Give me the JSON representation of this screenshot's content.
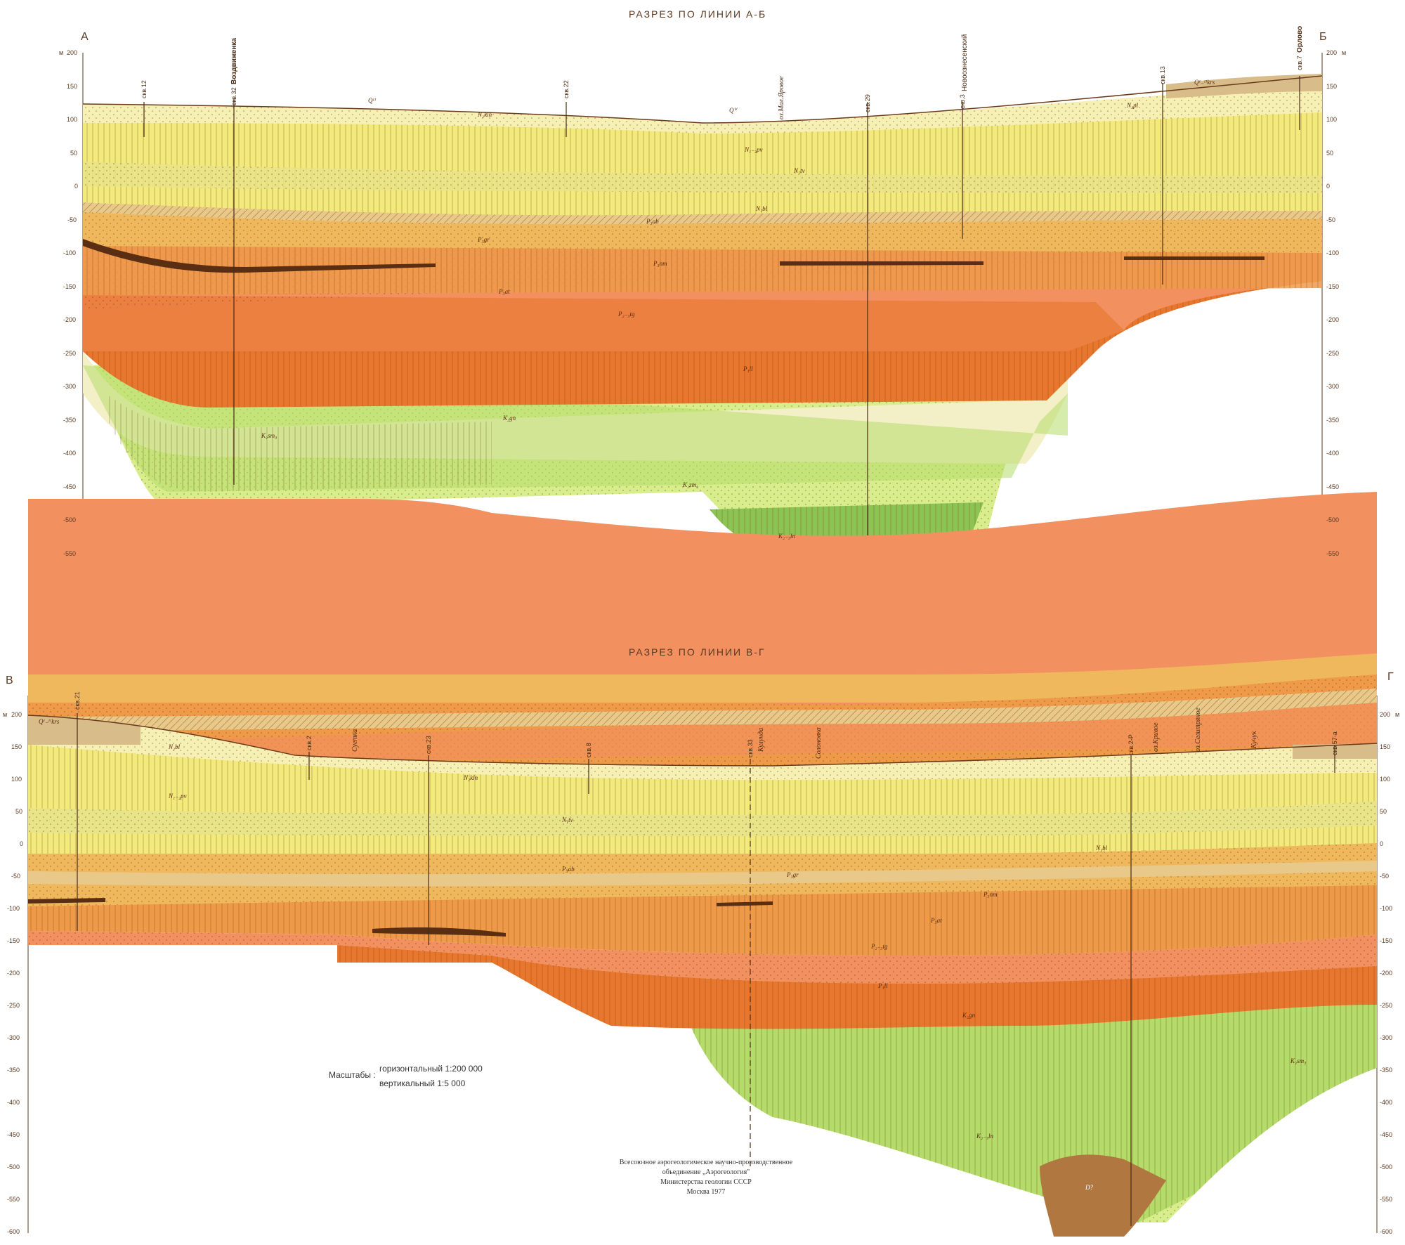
{
  "section1": {
    "title": "РАЗРЕЗ ПО ЛИНИИ А-Б",
    "left_label": "А",
    "right_label": "Б",
    "y_unit": "м",
    "y_ticks": [
      "200",
      "150",
      "100",
      "50",
      "0",
      "-50",
      "-100",
      "-150",
      "-200",
      "-250",
      "-300",
      "-350",
      "-400",
      "-450",
      "-500",
      "-550"
    ],
    "wells": [
      "скв.12",
      "скв.32",
      "скв.22",
      "скв.29",
      "скв.3",
      "скв.13",
      "скв.7"
    ],
    "places": [
      "Воздвиженка",
      "оз.Мал.Яровое",
      "Новоознесенский",
      "Орлово"
    ],
    "formations": [
      "Qᴵᴵ",
      "N₂kln",
      "Qⱽ",
      "N₁₋₂pv",
      "N₁tv",
      "N₁bl",
      "P₃ab",
      "P₃gr",
      "P₃nm",
      "P₃at",
      "P₂₋₃tg",
      "P₁ll",
      "K₂gn",
      "K₂sm₃",
      "K₂zm₂",
      "K₂₋₃ln",
      "Qᴵ₋ᴵᴵkrs",
      "N₂pl"
    ]
  },
  "section2": {
    "title": "РАЗРЕЗ ПО ЛИНИИ В-Г",
    "left_label": "В",
    "right_label": "Г",
    "y_unit": "м",
    "y_ticks": [
      "200",
      "150",
      "100",
      "50",
      "0",
      "-50",
      "-100",
      "-150",
      "-200",
      "-250",
      "-300",
      "-350",
      "-400",
      "-450",
      "-500",
      "-550",
      "-600"
    ],
    "wells": [
      "скв.21",
      "скв.2",
      "скв.23",
      "скв.8",
      "скв.33",
      "скв.2-Р",
      "скв.57-а"
    ],
    "places": [
      "Суетка",
      "Кулунда",
      "Солоновка",
      "оз.Кривое",
      "оз.Селитряное",
      "Кучук"
    ],
    "formations": [
      "Qᴵ₋ᴵᴵkrs",
      "N₂bl",
      "N₂kln",
      "N₁₋₂pv",
      "N₁tv",
      "N₁bl",
      "P₃ab",
      "P₃gr",
      "P₃nm",
      "P₃at",
      "P₂₋₃tg",
      "P₁ll",
      "K₂gn",
      "K₂sm₃",
      "K₂₋₃ln",
      "D?"
    ]
  },
  "scales": {
    "label": "Масштабы :",
    "horizontal": "горизонтальный  1:200 000",
    "vertical": "вертикальный  1:5 000"
  },
  "credits": [
    "Всесоюзное аэрогеологическое научно-производственное",
    "объединение „Аэрогеология\"",
    "Министерства геологии СССР",
    "Москва 1977"
  ],
  "colors": {
    "pale_yellow": "#f6f0b4",
    "yellow": "#f3ea7c",
    "yellow_green": "#e8e48a",
    "tan": "#e9c98a",
    "light_orange": "#f0b85c",
    "orange": "#ee9a48",
    "salmon": "#f39060",
    "deep_orange": "#e8762c",
    "cream": "#f3f0c8",
    "light_green": "#d8ee8c",
    "green": "#b4dc6a",
    "dark_green": "#8cc454",
    "brown": "#b07840",
    "dark_brown": "#5a2e12"
  }
}
